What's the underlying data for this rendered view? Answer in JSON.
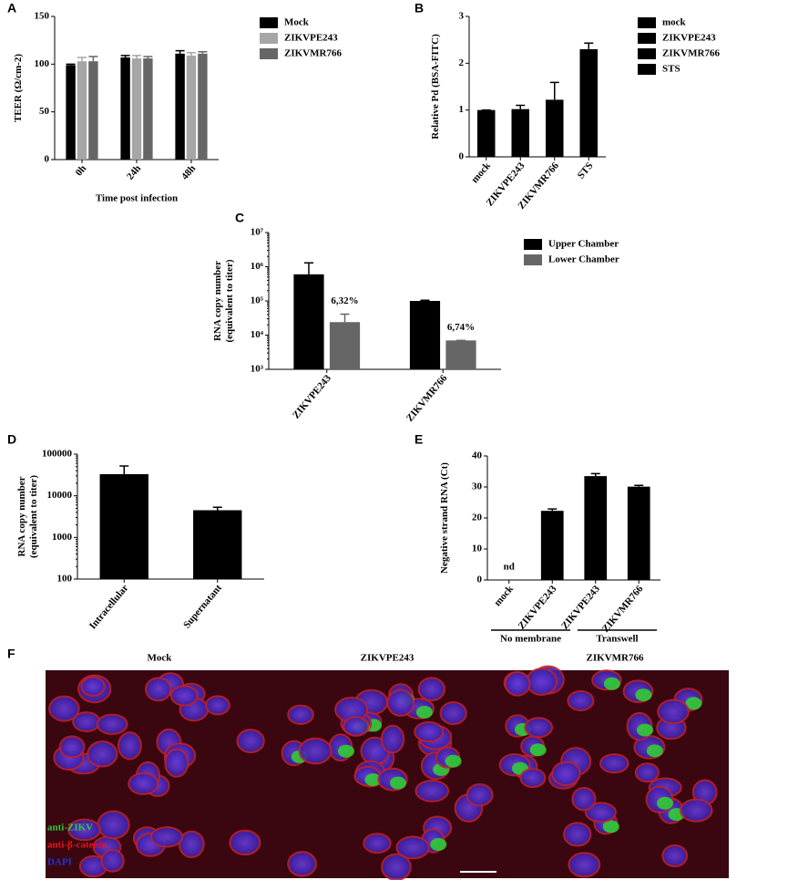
{
  "chart_data": [
    {
      "type": "bar",
      "panel": "A",
      "ylabel": [
        "TEER (Ω/cm-2)"
      ],
      "xlabel": "Time post infection",
      "categories": [
        "0h",
        "24h",
        "48h"
      ],
      "series": [
        {
          "name": "Mock",
          "color": "#000000",
          "values": [
            99,
            107,
            111
          ],
          "errors": [
            1,
            2,
            3
          ]
        },
        {
          "name": "ZIKVPE243",
          "color": "#a6a6a6",
          "values": [
            103,
            106,
            109
          ],
          "errors": [
            4,
            3,
            3
          ]
        },
        {
          "name": "ZIKVMR766",
          "color": "#666666",
          "values": [
            103,
            106,
            111
          ],
          "errors": [
            5,
            2,
            2
          ]
        }
      ],
      "ylim": [
        0,
        150
      ],
      "yticks": [
        0,
        50,
        100,
        150
      ],
      "legend": true
    },
    {
      "type": "bar",
      "panel": "B",
      "ylabel": [
        "Relative Pd (BSA-FITC)"
      ],
      "categories": [
        "mock",
        "ZIKVPE243",
        "ZIKVMR766",
        "STS"
      ],
      "color": "#000000",
      "values": [
        1,
        1.02,
        1.22,
        2.3
      ],
      "errors": [
        0,
        0.08,
        0.37,
        0.13
      ],
      "ylim": [
        0,
        3
      ],
      "yticks": [
        0,
        1,
        2,
        3
      ],
      "legend": true
    },
    {
      "type": "bar",
      "panel": "C",
      "ylabel": [
        "RNA copy number",
        "(equivalent to titer)"
      ],
      "log": true,
      "categories": [
        "ZIKVPE243",
        "ZIKVMR766"
      ],
      "series": [
        {
          "name": "Upper Chamber",
          "color": "#000000",
          "values": [
            600000,
            100000
          ],
          "errors": [
            700000,
            5000
          ]
        },
        {
          "name": "Lower Chamber",
          "color": "#666666",
          "values": [
            24000,
            7000
          ],
          "errors": [
            17000,
            0
          ]
        }
      ],
      "annotations": [
        "6,32%",
        "6,74%"
      ],
      "ylim": [
        1000,
        10000000
      ],
      "yticks": [
        {
          "value": 1000,
          "label": "10³"
        },
        {
          "value": 10000,
          "label": "10⁴"
        },
        {
          "value": 100000,
          "label": "10⁵"
        },
        {
          "value": 1000000,
          "label": "10⁶"
        },
        {
          "value": 10000000,
          "label": "10⁷"
        }
      ],
      "legend": true
    },
    {
      "type": "bar",
      "panel": "D",
      "ylabel": [
        "RNA copy number",
        "(equivalent to titer)"
      ],
      "log": true,
      "categories": [
        "Intracellular",
        "Supernatant"
      ],
      "color": "#000000",
      "values": [
        33000,
        4500
      ],
      "errors": [
        19000,
        800
      ],
      "ylim": [
        100,
        100000
      ],
      "yticks": [
        100,
        1000,
        10000,
        100000
      ]
    },
    {
      "type": "bar",
      "panel": "E",
      "ylabel": [
        "Negative strand RNA (Ct)"
      ],
      "categories": [
        "mock",
        "ZIKVPE243",
        "ZIKVPE243",
        "ZIKVMR766"
      ],
      "color": "#000000",
      "values": [
        null,
        22.3,
        33.5,
        30.1
      ],
      "errors": [
        null,
        0.6,
        0.8,
        0.4
      ],
      "annotations": [
        "nd",
        null,
        null,
        null
      ],
      "groups": [
        {
          "label": "No membrane",
          "span": [
            0,
            1
          ]
        },
        {
          "label": "Transwell",
          "span": [
            2,
            3
          ]
        }
      ],
      "ylim": [
        0,
        40
      ],
      "yticks": [
        0,
        10,
        20,
        30,
        40
      ]
    }
  ],
  "figure_f": {
    "panel": "F",
    "titles": [
      "Mock",
      "ZIKVPE243",
      "ZIKVMR766"
    ],
    "stain_labels": [
      "anti-ZIKV",
      "anti-β-catenin",
      "DAPI"
    ]
  }
}
